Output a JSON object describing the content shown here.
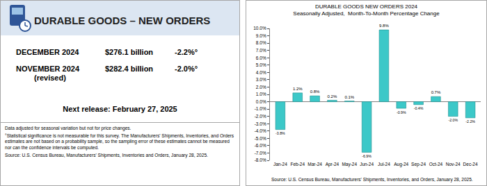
{
  "panel": {
    "title": "DURABLE GOODS – NEW ORDERS",
    "rows": [
      {
        "label": "DECEMBER 2024",
        "value": "$276.1 billion",
        "change": "-2.2%°"
      },
      {
        "label": "NOVEMBER 2024",
        "note": "(revised)",
        "value": "$282.4 billion",
        "change": "-2.0%°"
      }
    ],
    "next_release": "Next release:  February 27, 2025",
    "footnotes": [
      "Data adjusted for seasonal variation but not for price changes.",
      "°Statistical significance is not measurable for this survey. The Manufacturers' Shipments, Inventories, and Orders estimates are not based on a probability sample, so the sampling error of these estimates cannot be measured nor can the confidence intervals be computed.",
      "Source: U.S. Census Bureau, Manufacturers' Shipments, Inventories and Orders, January 28, 2025."
    ]
  },
  "chart_data": {
    "type": "bar",
    "title": "DURABLE GOODS NEW ORDERS 2024",
    "subtitle": "Seasonally Adjusted,  Month-To-Month Percentage Change",
    "categories": [
      "Jan-24",
      "Feb-24",
      "Mar-24",
      "Apr-24",
      "May-24",
      "Jun-24",
      "Jul-24",
      "Aug-24",
      "Sep-24",
      "Oct-24",
      "Nov-24",
      "Dec-24"
    ],
    "values": [
      -3.8,
      1.2,
      0.8,
      0.2,
      0.1,
      -6.9,
      9.8,
      -0.9,
      -0.4,
      0.7,
      -2.0,
      -2.2
    ],
    "value_labels": [
      "-3.8%",
      "1.2%",
      "0.8%",
      "0.2%",
      "0.1%",
      "-6.9%",
      "9.8%",
      "-0.9%",
      "-0.4%",
      "0.7%",
      "-2.0%",
      "-2.2%"
    ],
    "data_labels": true,
    "color": "#3cc8c8",
    "ylim": [
      -8,
      10
    ],
    "yticks": [
      {
        "value": -8,
        "label": "-8.0%"
      },
      {
        "value": -7,
        "label": "-7.0%"
      },
      {
        "value": -6,
        "label": "-6.0%"
      },
      {
        "value": -5,
        "label": "-5.0%"
      },
      {
        "value": -4,
        "label": "-4.0%"
      },
      {
        "value": -3,
        "label": "-3.0%"
      },
      {
        "value": -2,
        "label": "-2.0%"
      },
      {
        "value": -1,
        "label": "-1.0%"
      },
      {
        "value": 0,
        "label": "0.0%"
      },
      {
        "value": 1,
        "label": "1.0%"
      },
      {
        "value": 2,
        "label": "2.0%"
      },
      {
        "value": 3,
        "label": "3.0%"
      },
      {
        "value": 4,
        "label": "4.0%"
      },
      {
        "value": 5,
        "label": "5.0%"
      },
      {
        "value": 6,
        "label": "6.0%"
      },
      {
        "value": 7,
        "label": "7.0%"
      },
      {
        "value": 8,
        "label": "8.0%"
      },
      {
        "value": 9,
        "label": "9.0%"
      },
      {
        "value": 10,
        "label": "10.0%"
      }
    ],
    "grid": false,
    "annotations": [
      "Source: U.S. Census Bureau, Manufacturers' Shipments, Inventories, and Orders, January 28, 2025."
    ]
  }
}
